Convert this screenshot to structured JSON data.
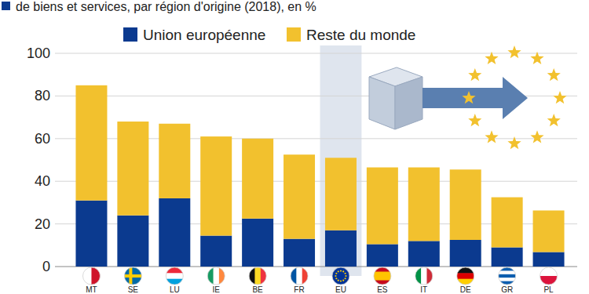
{
  "chart_data": {
    "type": "bar",
    "stacked": true,
    "title": "de biens et services, par région d'origine (2018), en %",
    "categories": [
      "MT",
      "SE",
      "LU",
      "IE",
      "BE",
      "FR",
      "EU",
      "ES",
      "IT",
      "DE",
      "GR",
      "PL"
    ],
    "series": [
      {
        "name": "Union européenne",
        "color": "#0b3a8f",
        "values": [
          31,
          24,
          32,
          14.5,
          22.5,
          13,
          17,
          10.5,
          12,
          12.5,
          9,
          6.8
        ]
      },
      {
        "name": "Reste du monde",
        "color": "#f2c12e",
        "values": [
          54,
          44,
          35,
          46.5,
          37.5,
          39.5,
          34,
          36,
          34.5,
          33,
          23.5,
          19.5
        ]
      }
    ],
    "ylim": [
      0,
      100
    ],
    "yticks": [
      0,
      20,
      40,
      60,
      80,
      100
    ],
    "grid": true,
    "legend": "top"
  }
}
